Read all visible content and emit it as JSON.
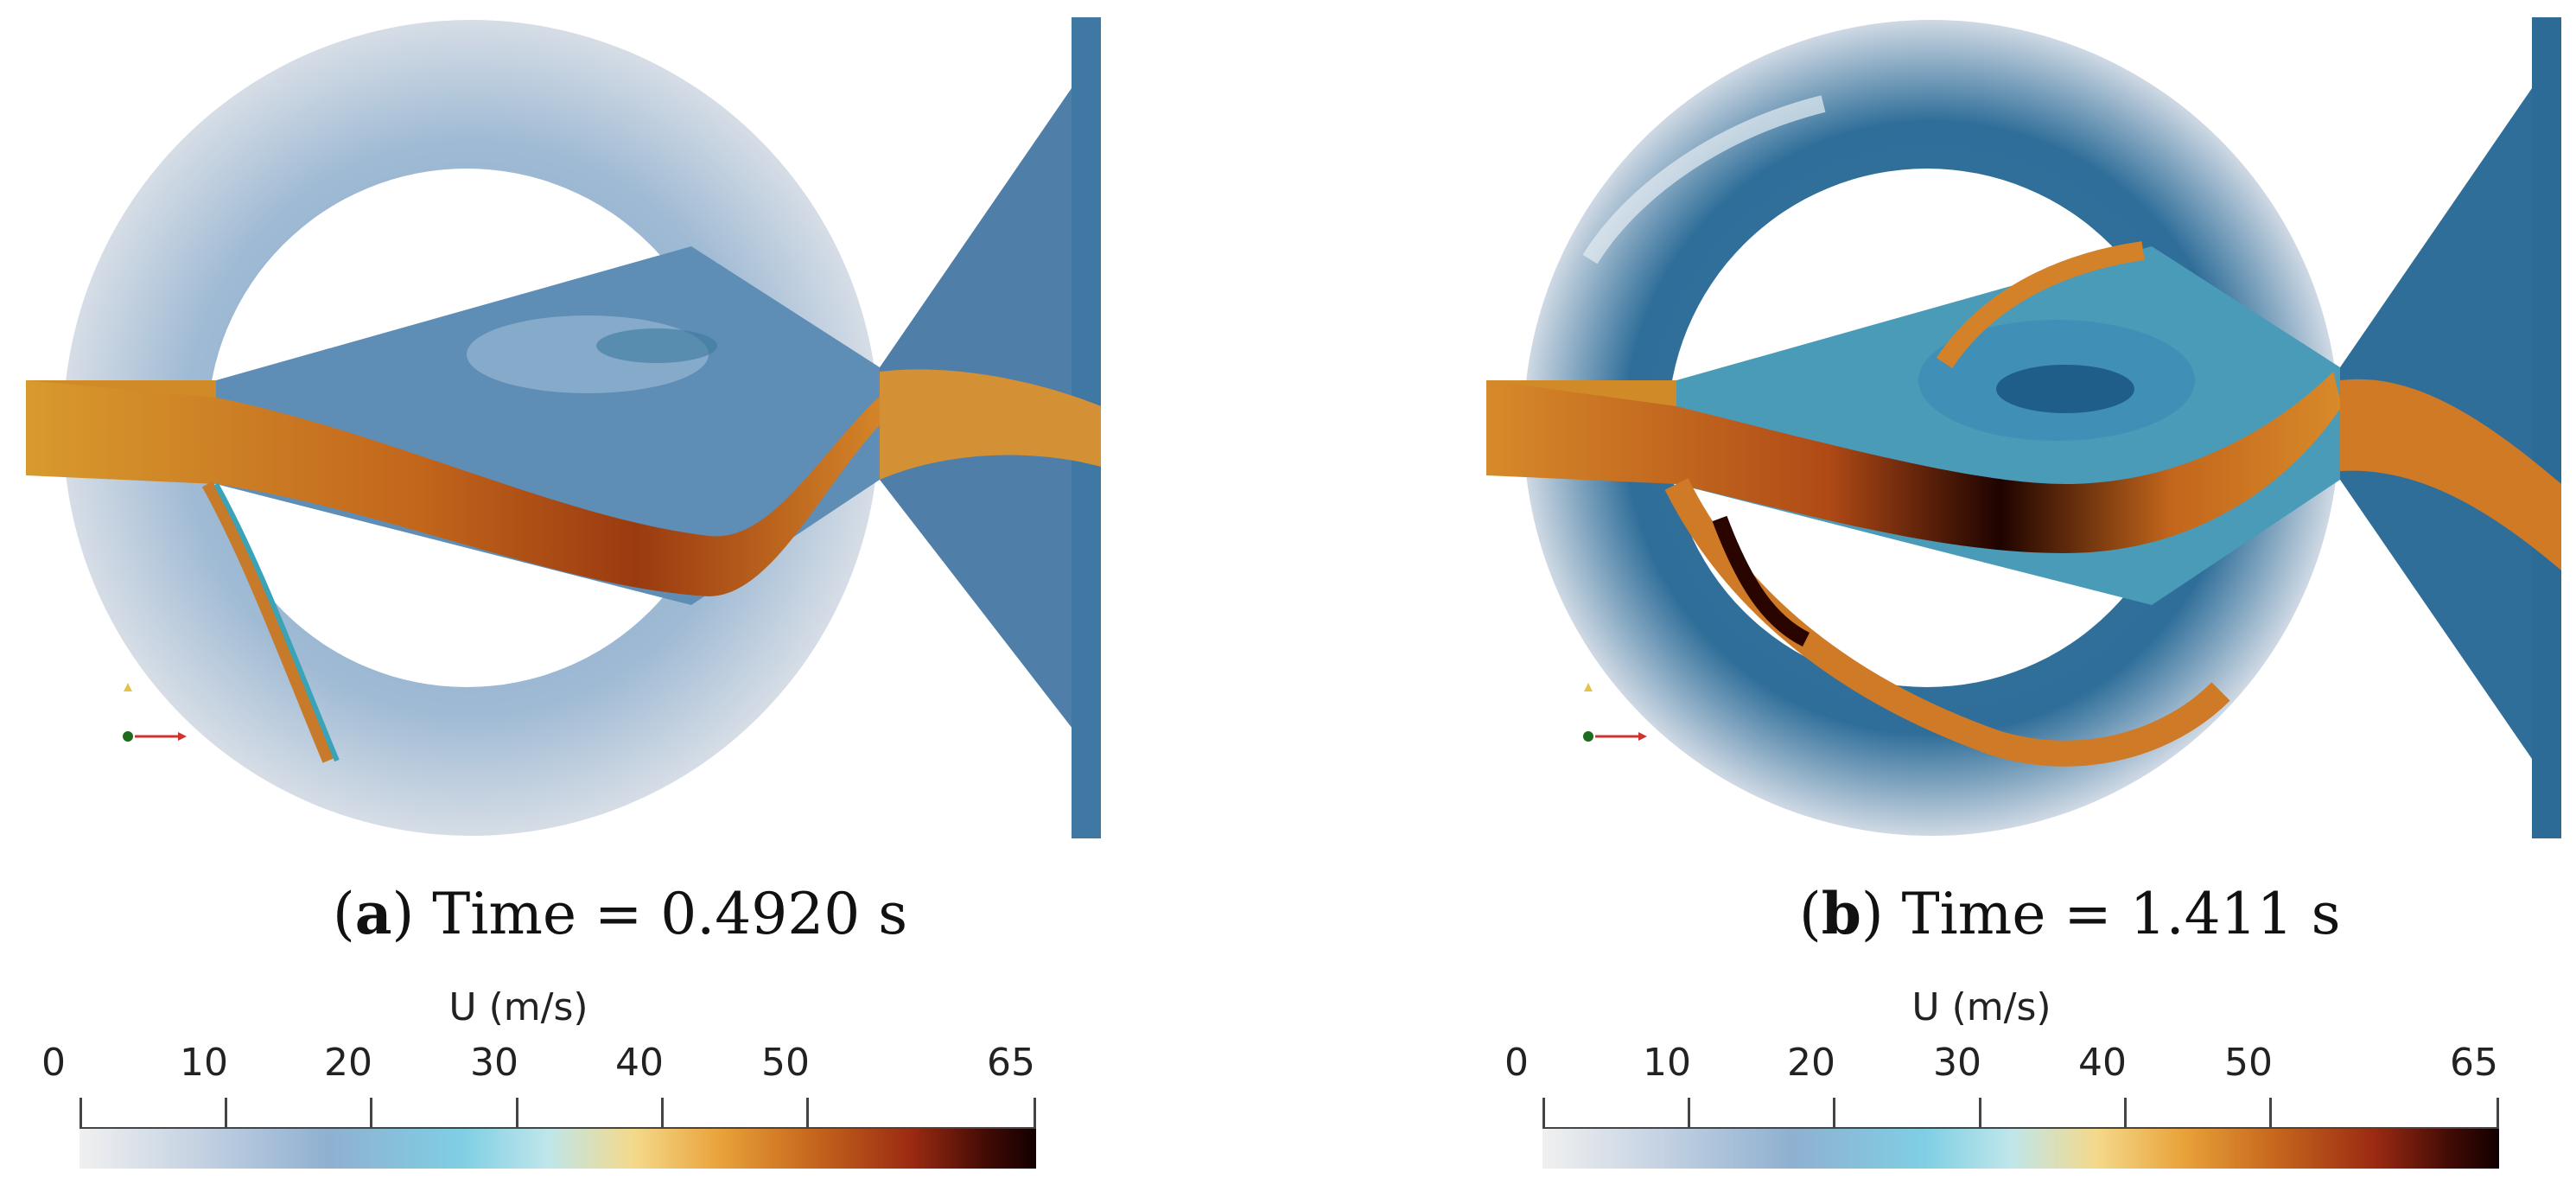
{
  "panels": [
    {
      "id": "a",
      "caption_letter": "a",
      "caption_text": " Time = 0.4920 s",
      "colorbar": {
        "title": "U (m/s)",
        "ticks": [
          "0",
          "10",
          "20",
          "30",
          "40",
          "50",
          "65"
        ],
        "min": 0,
        "max": 65
      }
    },
    {
      "id": "b",
      "caption_letter": "b",
      "caption_text": " Time = 1.411 s",
      "colorbar": {
        "title": "U (m/s)",
        "ticks": [
          "0",
          "10",
          "20",
          "30",
          "40",
          "50",
          "65"
        ],
        "min": 0,
        "max": 65
      }
    }
  ],
  "colors": {
    "low": "#f0f0f0",
    "blue": "#4f7ea8",
    "teal": "#3aa3b8",
    "orange": "#d47a1f",
    "dark": "#2a0500"
  }
}
